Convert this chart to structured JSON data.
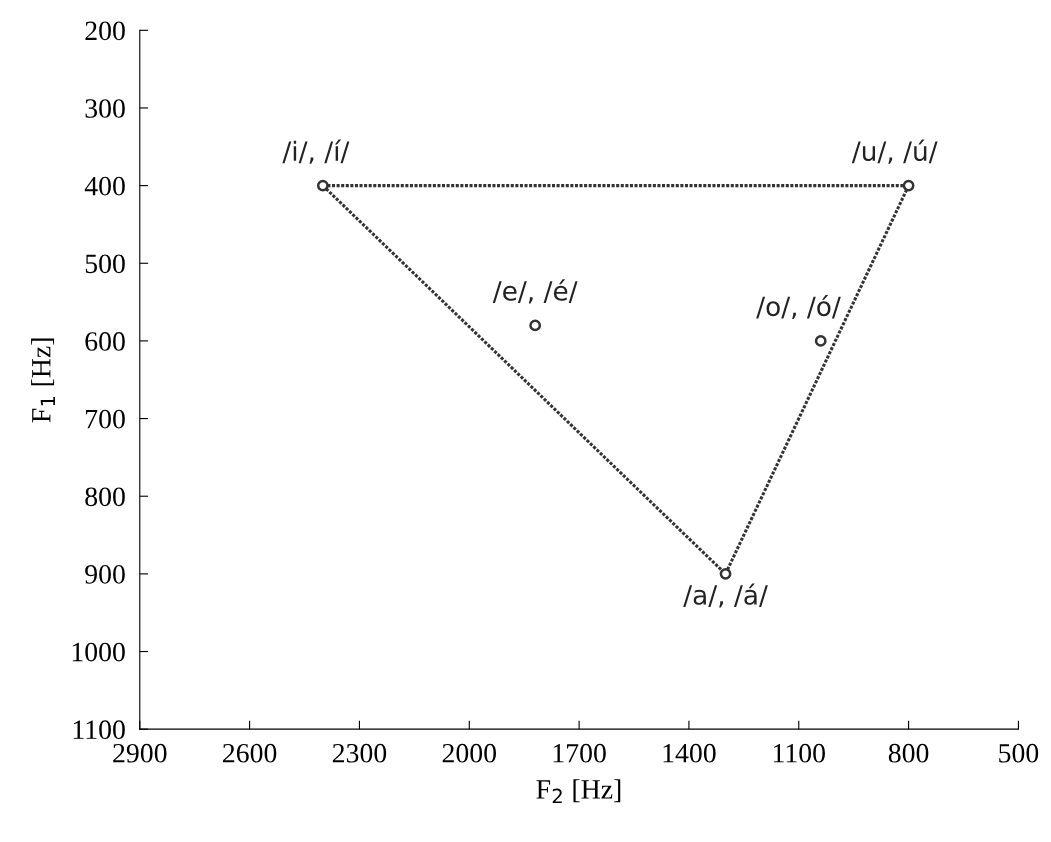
{
  "chart_data": {
    "type": "scatter",
    "xlabel": "F$_{2}$ [Hz]",
    "ylabel": "F$_{1}$ [Hz]",
    "xlim": [
      2900,
      500
    ],
    "xticks": [
      2900,
      2600,
      2300,
      2000,
      1700,
      1400,
      1100,
      800,
      500
    ],
    "ylim": [
      1100,
      200
    ],
    "yticks": [
      200,
      300,
      400,
      500,
      600,
      700,
      800,
      900,
      1000,
      1100
    ],
    "grid": false,
    "legend": false,
    "series": [
      {
        "type": "line",
        "x": [
          2400,
          800
        ],
        "values": [
          400,
          400
        ],
        "color": "#333333",
        "line_style": "dotted"
      },
      {
        "type": "line",
        "x": [
          1300,
          800
        ],
        "values": [
          900,
          400
        ],
        "color": "#333333",
        "line_style": "dotted"
      },
      {
        "type": "line",
        "x": [
          2400,
          1300
        ],
        "values": [
          400,
          900
        ],
        "color": "#333333",
        "line_style": "dotted"
      },
      {
        "x": [
          2400,
          800,
          1820,
          1040,
          1300
        ],
        "values": [
          400,
          400,
          580,
          600,
          900
        ],
        "color": "#333333",
        "marker": "circle"
      }
    ],
    "annotations": [
      {
        "text": "/i/, /í/",
        "x": 2400,
        "y": 400
      },
      {
        "text": "/u/, /ú/",
        "x": 800,
        "y": 400
      },
      {
        "text": "/e/, /é/",
        "x": 1820,
        "y": 580
      },
      {
        "text": "/o/, /ó/",
        "x": 1040,
        "y": 600
      },
      {
        "text": "/a/, /á/",
        "x": 1300,
        "y": 900
      }
    ]
  }
}
